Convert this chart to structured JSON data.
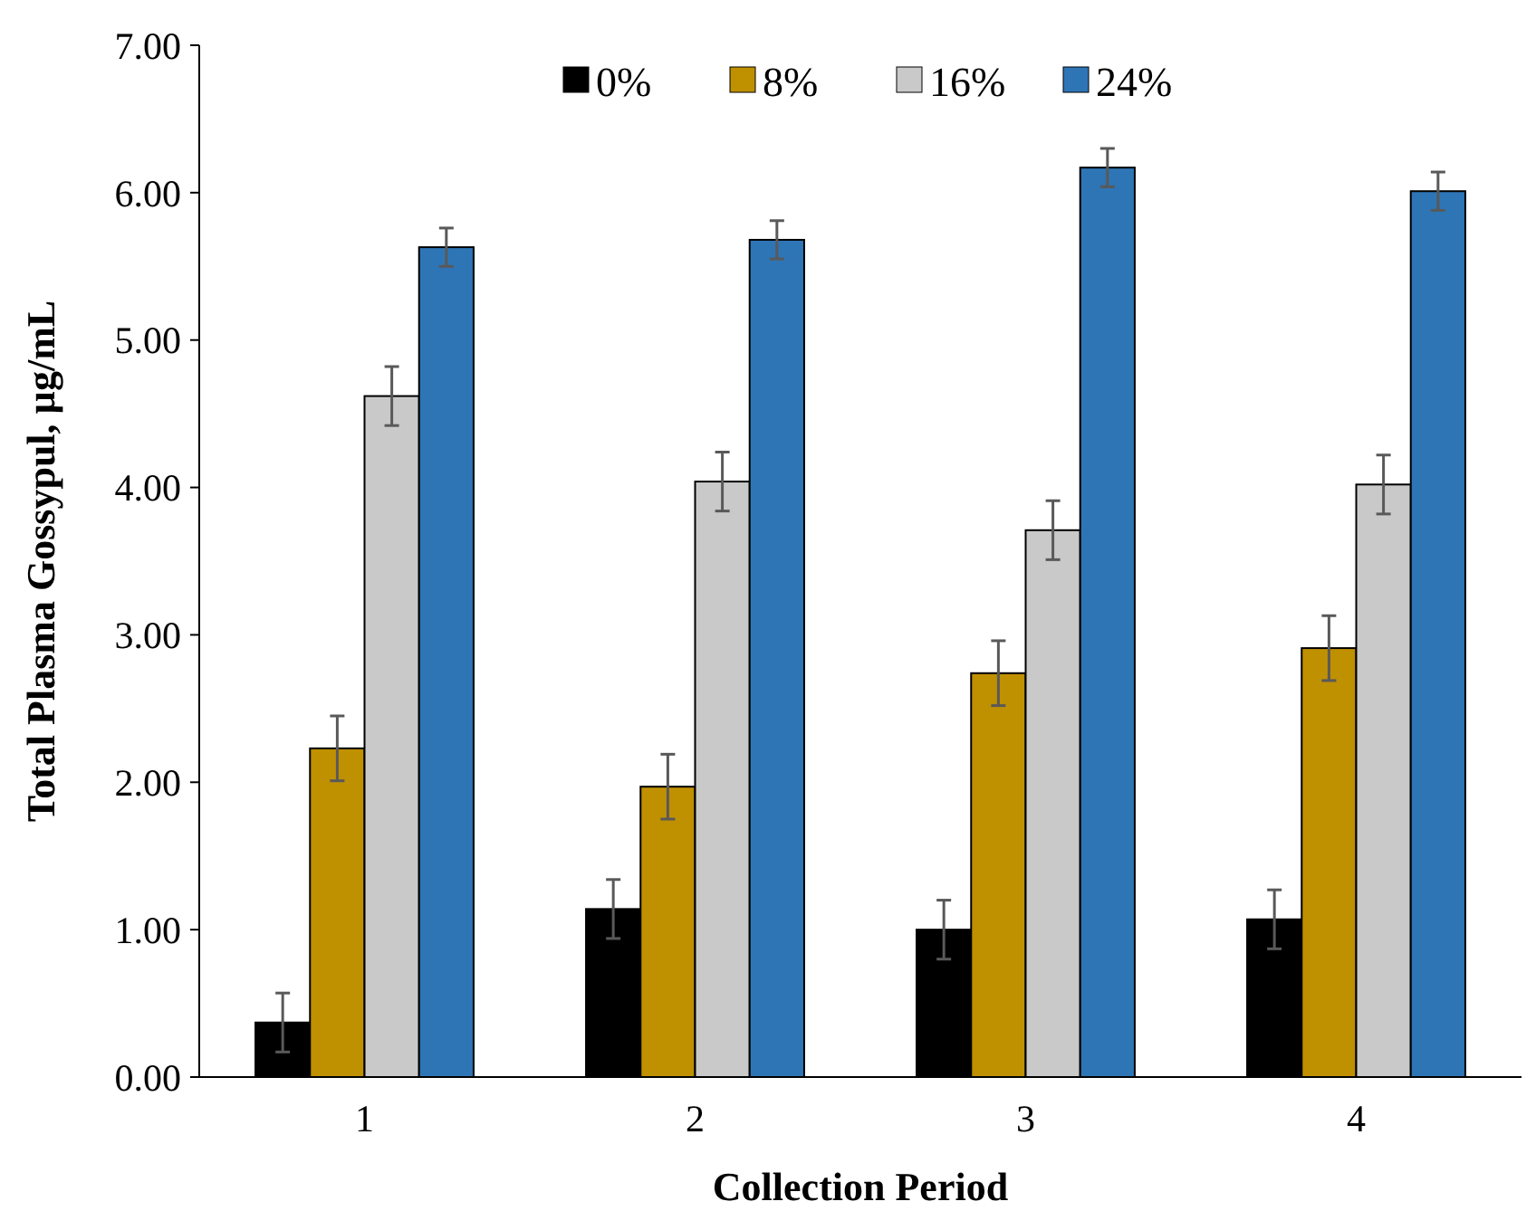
{
  "chart_data": {
    "type": "bar",
    "xlabel": "Collection Period",
    "ylabel": "Total Plasma Gossypul, µg/mL",
    "categories": [
      "1",
      "2",
      "3",
      "4"
    ],
    "series": [
      {
        "name": "0%",
        "color": "#000000",
        "values": [
          0.37,
          1.14,
          1.0,
          1.07
        ],
        "errors": [
          0.2,
          0.2,
          0.2,
          0.2
        ]
      },
      {
        "name": "8%",
        "color": "#bf9000",
        "values": [
          2.23,
          1.97,
          2.74,
          2.91
        ],
        "errors": [
          0.22,
          0.22,
          0.22,
          0.22
        ]
      },
      {
        "name": "16%",
        "color": "#c9c9c9",
        "values": [
          4.62,
          4.04,
          3.71,
          4.02
        ],
        "errors": [
          0.2,
          0.2,
          0.2,
          0.2
        ]
      },
      {
        "name": "24%",
        "color": "#2e75b6",
        "values": [
          5.63,
          5.68,
          6.17,
          6.01
        ],
        "errors": [
          0.13,
          0.13,
          0.13,
          0.13
        ]
      }
    ],
    "ylim": [
      0,
      7
    ],
    "yticks": [
      {
        "value": 0,
        "label": "0.00"
      },
      {
        "value": 1,
        "label": "1.00"
      },
      {
        "value": 2,
        "label": "2.00"
      },
      {
        "value": 3,
        "label": "3.00"
      },
      {
        "value": 4,
        "label": "4.00"
      },
      {
        "value": 5,
        "label": "5.00"
      },
      {
        "value": 6,
        "label": "6.00"
      },
      {
        "value": 7,
        "label": "7.00"
      }
    ],
    "grid": false,
    "legend": "top"
  }
}
